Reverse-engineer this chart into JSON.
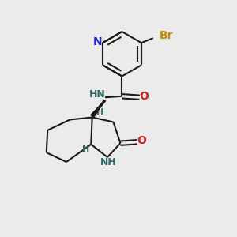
{
  "background_color": "#ebebeb",
  "figsize": [
    3.0,
    3.0
  ],
  "dpi": 100,
  "bond_color": "#1a1a1a",
  "N_color": "#2222cc",
  "O_color": "#cc2222",
  "Br_color": "#cc8800",
  "NH_color": "#336666",
  "lw": 1.5,
  "xlim": [
    0,
    10
  ],
  "ylim": [
    0,
    10
  ]
}
